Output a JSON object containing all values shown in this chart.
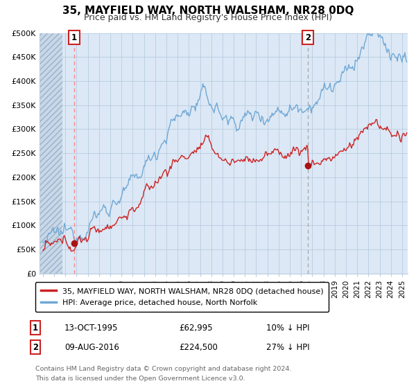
{
  "title": "35, MAYFIELD WAY, NORTH WALSHAM, NR28 0DQ",
  "subtitle": "Price paid vs. HM Land Registry's House Price Index (HPI)",
  "ylabel_ticks": [
    "£0",
    "£50K",
    "£100K",
    "£150K",
    "£200K",
    "£250K",
    "£300K",
    "£350K",
    "£400K",
    "£450K",
    "£500K"
  ],
  "ytick_values": [
    0,
    50000,
    100000,
    150000,
    200000,
    250000,
    300000,
    350000,
    400000,
    450000,
    500000
  ],
  "xlim_start": 1992.7,
  "xlim_end": 2025.5,
  "ylim_min": 0,
  "ylim_max": 500000,
  "sale1_t": 1995.79,
  "sale1_p": 62995,
  "sale2_t": 2016.61,
  "sale2_p": 224500,
  "legend_line1": "35, MAYFIELD WAY, NORTH WALSHAM, NR28 0DQ (detached house)",
  "legend_line2": "HPI: Average price, detached house, North Norfolk",
  "ann1_label": "1",
  "ann1_date": "13-OCT-1995",
  "ann1_price": "£62,995",
  "ann1_hpi": "10% ↓ HPI",
  "ann2_label": "2",
  "ann2_date": "09-AUG-2016",
  "ann2_price": "£224,500",
  "ann2_hpi": "27% ↓ HPI",
  "footer1": "Contains HM Land Registry data © Crown copyright and database right 2024.",
  "footer2": "This data is licensed under the Open Government Licence v3.0.",
  "hpi_color": "#6fa8d6",
  "sale_color": "#cc2222",
  "dot_color": "#aa1111",
  "vline1_color": "#ff8888",
  "vline2_color": "#aaaaaa",
  "ann_box_color": "#cc2222",
  "bg_color": "#dce8f5",
  "hatch_facecolor": "#c8d8e8",
  "grid_color": "#b8cce0"
}
